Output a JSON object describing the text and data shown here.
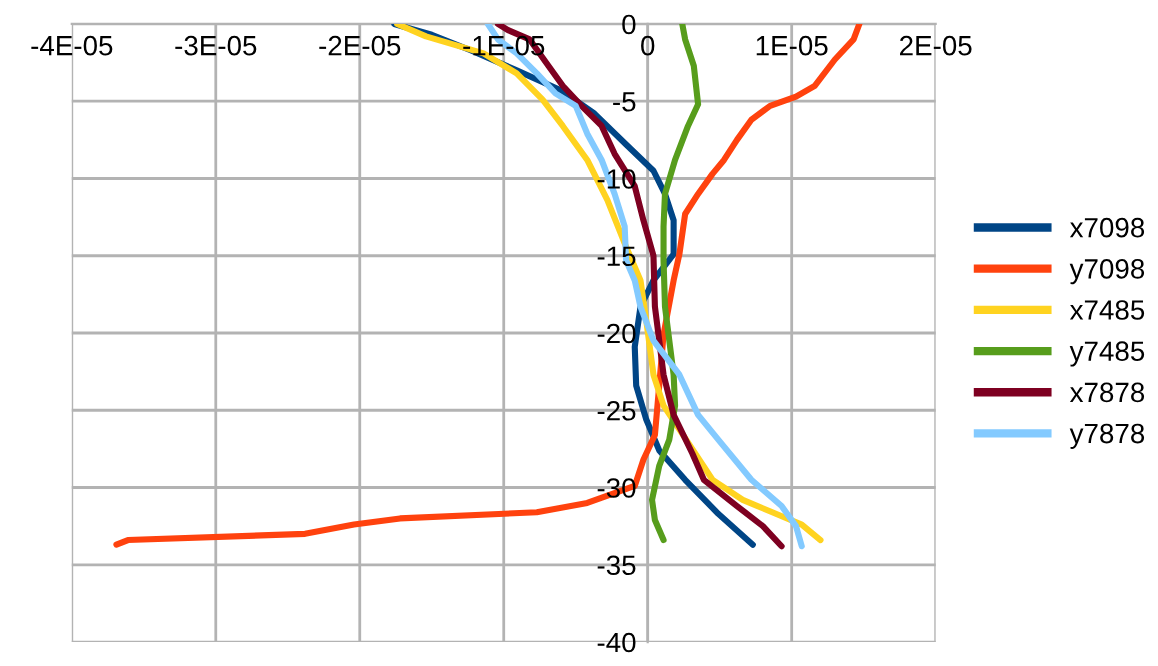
{
  "chart_data": {
    "type": "line",
    "xlim": [
      -4e-05,
      2e-05
    ],
    "ylim": [
      -40,
      0
    ],
    "xticks": [
      {
        "value": -4e-05,
        "label": "-4E-05"
      },
      {
        "value": -3e-05,
        "label": "-3E-05"
      },
      {
        "value": -2e-05,
        "label": "-2E-05"
      },
      {
        "value": -1e-05,
        "label": "-1E-05"
      },
      0,
      {
        "value": 1e-05,
        "label": "1E-05"
      },
      {
        "value": 2e-05,
        "label": "2E-05"
      }
    ],
    "yticks": [
      0,
      -5,
      -10,
      -15,
      -20,
      -25,
      -30,
      -35,
      -40
    ],
    "grid": true,
    "legend": "right",
    "marker": "none",
    "line_style": "solid",
    "series": [
      {
        "name": "x7098",
        "color": "#004586",
        "x": [
          -1.76e-05,
          -1.5e-05,
          -1.23e-05,
          -9.1e-06,
          -6e-06,
          -3.7e-06,
          -1.5e-06,
          4e-07,
          1.2e-06,
          1.8e-06,
          1.8e-06,
          4e-07,
          -5e-07,
          -9e-07,
          -8e-07,
          -1e-07,
          8e-07,
          2.6e-06,
          4.9e-06,
          7.3e-06
        ],
        "values": [
          0,
          -0.7,
          -1.7,
          -3.0,
          -4.3,
          -5.8,
          -7.8,
          -9.5,
          -11.0,
          -12.7,
          -14.9,
          -16.6,
          -18.3,
          -20.9,
          -23.4,
          -25.6,
          -27.6,
          -29.5,
          -31.7,
          -33.7
        ]
      },
      {
        "name": "y7098",
        "color": "#ff420e",
        "x": [
          1.47e-05,
          1.43e-05,
          1.3e-05,
          1.16e-05,
          1.03e-05,
          8.5e-06,
          7.2e-06,
          6.2e-06,
          5.3e-06,
          4.5e-06,
          3.5e-06,
          2.6e-06,
          2.2e-06,
          1.8e-06,
          1.1e-06,
          8e-07,
          5e-07,
          -3e-07,
          -9e-07,
          -4.2e-06,
          -7.7e-06,
          -1.72e-05,
          -2.04e-05,
          -2.38e-05,
          -3.61e-05,
          -3.69e-05
        ],
        "values": [
          0,
          -1.0,
          -2.3,
          -4.0,
          -4.7,
          -5.3,
          -6.2,
          -7.5,
          -8.8,
          -9.7,
          -11.0,
          -12.3,
          -14.9,
          -16.6,
          -20.1,
          -23.4,
          -26.6,
          -28.2,
          -29.9,
          -31.0,
          -31.6,
          -32.0,
          -32.4,
          -33.0,
          -33.4,
          -33.7
        ]
      },
      {
        "name": "x7485",
        "color": "#ffd320",
        "x": [
          -1.74e-05,
          -1.54e-05,
          -1.14e-05,
          -9.1e-06,
          -7.3e-06,
          -5.9e-06,
          -4.2e-06,
          -2.8e-06,
          -1.6e-06,
          -5e-07,
          -1e-07,
          4e-07,
          1.1e-06,
          2.6e-06,
          4.5e-06,
          6.6e-06,
          8.9e-06,
          1.07e-05,
          1.2e-05
        ],
        "values": [
          0,
          -0.8,
          -1.9,
          -3.2,
          -4.9,
          -6.6,
          -8.8,
          -11.4,
          -14.2,
          -16.6,
          -19.2,
          -22.7,
          -24.7,
          -26.8,
          -29.5,
          -30.8,
          -31.7,
          -32.4,
          -33.4
        ]
      },
      {
        "name": "y7485",
        "color": "#579d1c",
        "x": [
          2.4e-06,
          2.6e-06,
          3.2e-06,
          3.5e-06,
          2.8e-06,
          1.9e-06,
          1.2e-06,
          1.1e-06,
          1.1e-06,
          1.2e-06,
          1.8e-06,
          1.9e-06,
          1.5e-06,
          8e-07,
          3e-07,
          5e-07,
          1.1e-06
        ],
        "values": [
          0,
          -1.0,
          -2.7,
          -5.2,
          -6.6,
          -8.8,
          -11.0,
          -13.1,
          -15.3,
          -18.3,
          -22.7,
          -24.7,
          -26.9,
          -28.6,
          -30.8,
          -32.1,
          -33.4
        ]
      },
      {
        "name": "x7878",
        "color": "#7e0021",
        "x": [
          -1.04e-05,
          -9.7e-06,
          -8.2e-06,
          -6.9e-06,
          -5.9e-06,
          -4.6e-06,
          -3.2e-06,
          -2.3e-06,
          -9e-07,
          -3e-07,
          4e-07,
          5e-07,
          1.1e-06,
          1.8e-06,
          3.1e-06,
          3.9e-06,
          6.2e-06,
          8e-06,
          9.3e-06
        ],
        "values": [
          0,
          -0.4,
          -1.0,
          -2.7,
          -4.0,
          -5.3,
          -6.6,
          -8.4,
          -10.5,
          -12.7,
          -15.0,
          -18.3,
          -22.7,
          -25.3,
          -27.8,
          -29.5,
          -31.2,
          -32.5,
          -33.8
        ]
      },
      {
        "name": "y7878",
        "color": "#83caff",
        "x": [
          -1.11e-05,
          -1.04e-05,
          -9.1e-06,
          -7.7e-06,
          -6.4e-06,
          -5e-06,
          -4.2e-06,
          -3.2e-06,
          -2.3e-06,
          -1.6e-06,
          -1.5e-06,
          -9e-07,
          -5e-07,
          4e-07,
          2.2e-06,
          3.5e-06,
          4.9e-06,
          7.2e-06,
          9.3e-06,
          1.03e-05,
          1.07e-05
        ],
        "values": [
          0,
          -1.0,
          -1.9,
          -3.2,
          -4.5,
          -5.3,
          -7.1,
          -8.8,
          -11.0,
          -13.1,
          -15.3,
          -16.6,
          -18.3,
          -20.5,
          -22.7,
          -25.3,
          -26.9,
          -29.5,
          -31.2,
          -32.5,
          -33.8
        ]
      }
    ]
  }
}
